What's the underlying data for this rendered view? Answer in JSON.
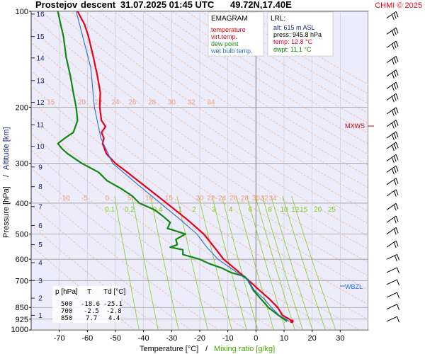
{
  "header": {
    "station": "Prostejov",
    "phase": "descent",
    "datetime": "31.07.2025 01:45 UTC",
    "coords": "49.72N,17.40E",
    "copyright": "CHMI © 2025"
  },
  "legend": {
    "title": "EMAGRAM",
    "items": [
      {
        "label": "temperature",
        "color": "#e8001c"
      },
      {
        "label": "virt.temp.",
        "color": "#e8001c"
      },
      {
        "label": "dew point",
        "color": "#118811"
      },
      {
        "label": "wet bulb temp.",
        "color": "#2a6fdb"
      }
    ]
  },
  "lrl": {
    "title": "LRL:",
    "alt": "alt: 615 m ASL",
    "press": "press: 945.8 hPa",
    "temp": "temp: 12.8 °C",
    "dwpt": "dwpt: 11.1 °C"
  },
  "levels_table": {
    "headers": [
      "p [hPa]",
      "T",
      "Td [°C]"
    ],
    "rows": [
      [
        "500",
        "-18.6",
        "-25.1"
      ],
      [
        "700",
        "-2.5",
        "-2.8"
      ],
      [
        "850",
        "7.7",
        "4.4"
      ]
    ]
  },
  "labels": {
    "mxws": "MXWS",
    "wbzl": "WBZL",
    "xlabel_temp": "Temperature [°C]",
    "xlabel_sep": "/",
    "xlabel_mix": "Mixing ratio [g/kg]",
    "ylabel_p": "Pressure [hPa]",
    "ylabel_sep": "/",
    "ylabel_alt": "Altitude [km]"
  },
  "colors": {
    "temperature": "#e8001c",
    "dewpoint": "#118811",
    "wetbulb": "#2a6fdb",
    "mixing": "#88cc22",
    "adiabat": "#f4b28a",
    "altitude": "#1a237e",
    "mxws": "#cc0000",
    "wbzl": "#2a6fdb"
  },
  "chart_data": {
    "type": "line",
    "x_axis": {
      "label": "Temperature [°C]",
      "range": [
        -80,
        40
      ],
      "ticks": [
        -70,
        -60,
        -50,
        -40,
        -30,
        -20,
        -10,
        0,
        10,
        20,
        30
      ]
    },
    "y_axis": {
      "label": "Pressure [hPa]",
      "scale": "log",
      "range": [
        1000,
        100
      ],
      "ticks": [
        100,
        200,
        300,
        400,
        500,
        600,
        700,
        850,
        925,
        1000
      ]
    },
    "altitude_ticks_km": [
      "1",
      "2",
      "3",
      "4",
      "5",
      "6",
      "7",
      "8",
      "9",
      "10",
      "11",
      "12",
      "13",
      "14",
      "15",
      "16"
    ],
    "altitude_tick_pressures": [
      900,
      795,
      700,
      615,
      540,
      470,
      410,
      355,
      308,
      265,
      227,
      193,
      165,
      140,
      120,
      102
    ],
    "mixing_ratio_labels_upper": [
      "15",
      "20",
      "22",
      "24",
      "26",
      "28",
      "30",
      "32",
      "34"
    ],
    "mixing_ratio_labels_upper_x": [
      -73,
      -62,
      -56,
      -50,
      -44,
      -37,
      -30,
      -23,
      -16
    ],
    "mixing_ratio_labels_mid": [
      "-10",
      "-5",
      "0",
      "5",
      "10",
      "15",
      "20",
      "22",
      "24",
      "26",
      "28",
      "30",
      "32",
      "34"
    ],
    "mixing_ratio_labels_mid_x": [
      -68,
      -61,
      -53,
      -45,
      -38,
      -31,
      -20,
      -16,
      -12,
      -8,
      -4,
      0,
      3,
      6
    ],
    "mixing_ratio_labels_low": [
      "0.1",
      "0.2",
      "0.4",
      "1",
      "2",
      "3",
      "4",
      "6",
      "8",
      "10",
      "12",
      "15",
      "20",
      "25"
    ],
    "mixing_ratio_labels_low_x": [
      -52,
      -45,
      -35,
      -27,
      -22,
      -15,
      -9,
      -2,
      5,
      10,
      14,
      17,
      22,
      27
    ],
    "series": [
      {
        "name": "temperature",
        "p": [
          940,
          925,
          900,
          850,
          800,
          750,
          700,
          650,
          600,
          550,
          500,
          450,
          400,
          350,
          320,
          300,
          280,
          260,
          250,
          240,
          230,
          220,
          200,
          180,
          160,
          140,
          120,
          110,
          100
        ],
        "t": [
          12.8,
          11.9,
          9.5,
          7.7,
          4.8,
          1.2,
          -2.5,
          -6.8,
          -11.5,
          -14.8,
          -18.6,
          -24.5,
          -31.8,
          -40.2,
          -45.8,
          -50.0,
          -53.2,
          -54.6,
          -54.1,
          -55.0,
          -53.5,
          -55.0,
          -55.6,
          -55.4,
          -56.4,
          -57.8,
          -59.6,
          -61.0,
          -63.5
        ]
      },
      {
        "name": "dew point",
        "p": [
          940,
          925,
          900,
          850,
          800,
          750,
          720,
          700,
          680,
          660,
          640,
          620,
          600,
          580,
          560,
          550,
          540,
          520,
          500,
          480,
          460,
          440,
          420,
          400,
          380,
          360,
          340,
          320,
          300,
          280,
          270,
          260,
          250,
          240,
          220,
          200,
          180,
          160,
          140,
          120,
          110,
          100
        ],
        "t": [
          11.1,
          10.0,
          8.0,
          4.4,
          1.8,
          -1.0,
          -2.0,
          -2.8,
          -4.0,
          -9.0,
          -12.0,
          -16.5,
          -20.0,
          -26.0,
          -26.0,
          -30.5,
          -28.0,
          -28.5,
          -25.1,
          -31.5,
          -30.5,
          -33.0,
          -36.0,
          -41.5,
          -44.0,
          -48.0,
          -53.0,
          -56.0,
          -62.0,
          -67.0,
          -69.0,
          -70.5,
          -68.0,
          -65.0,
          -63.5,
          -64.0,
          -65.0,
          -66.0,
          -67.5,
          -68.5,
          -69.5,
          -70.5
        ]
      },
      {
        "name": "wet bulb temp.",
        "p": [
          940,
          925,
          900,
          850,
          800,
          750,
          700,
          650,
          600,
          550,
          500,
          450,
          400,
          350,
          300,
          250,
          200,
          150,
          100
        ],
        "t": [
          11.8,
          10.8,
          8.3,
          5.5,
          3.0,
          -0.6,
          -2.7,
          -7.8,
          -13.5,
          -17.5,
          -21.0,
          -27.0,
          -34.0,
          -42.0,
          -51.0,
          -55.2,
          -57.5,
          -58.8,
          -64.0
        ]
      }
    ],
    "wind_barb_pressures": [
      940,
      860,
      790,
      720,
      660,
      600,
      550,
      500,
      460,
      420,
      380,
      350,
      320,
      295,
      270,
      250,
      230,
      210,
      190,
      175,
      160,
      145,
      130,
      118,
      105
    ],
    "mxws_pressure": 235,
    "wbzl_pressure": 710,
    "grid": true
  }
}
